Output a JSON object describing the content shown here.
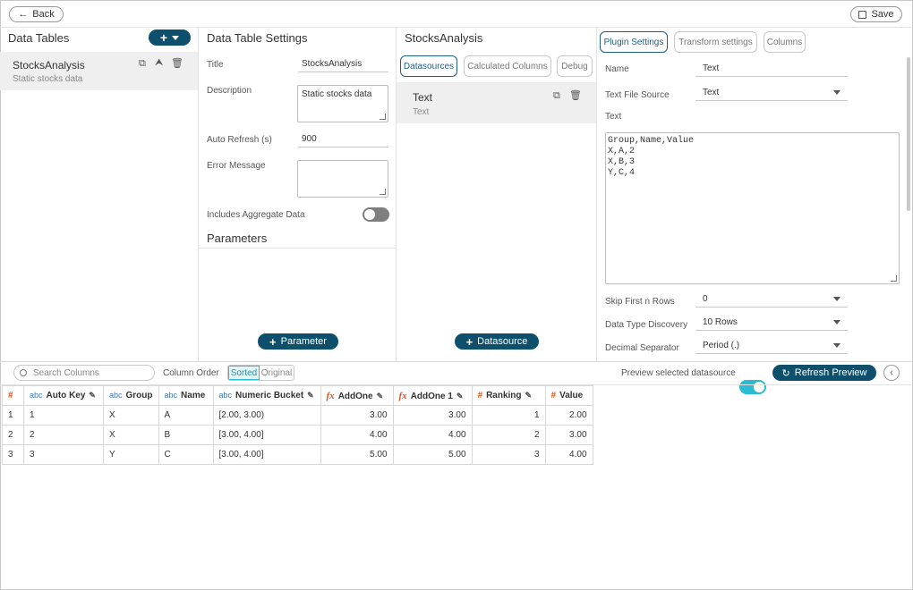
{
  "topbar": {
    "back_label": "Back",
    "save_label": "Save"
  },
  "data_tables": {
    "title": "Data Tables",
    "items": [
      {
        "name": "StocksAnalysis",
        "description": "Static stocks data"
      }
    ]
  },
  "settings": {
    "title": "Data Table Settings",
    "title_label": "Title",
    "title_value": "StocksAnalysis",
    "description_label": "Description",
    "description_value": "Static stocks data",
    "auto_refresh_label": "Auto Refresh (s)",
    "auto_refresh_value": "900",
    "error_message_label": "Error Message",
    "aggregate_label": "Includes Aggregate Data",
    "parameters_title": "Parameters",
    "add_parameter_label": "Parameter"
  },
  "datasource_panel": {
    "title": "StocksAnalysis",
    "tabs": [
      "Datasources",
      "Calculated Columns",
      "Debug"
    ],
    "items": [
      {
        "name": "Text",
        "type": "Text"
      }
    ],
    "add_datasource_label": "Datasource"
  },
  "plugin": {
    "tabs": [
      "Plugin Settings",
      "Transform settings",
      "Columns"
    ],
    "name_label": "Name",
    "name_value": "Text",
    "source_label": "Text File Source",
    "source_value": "Text",
    "text_label": "Text",
    "text_value": "Group,Name,Value\nX,A,2\nX,B,3\nY,C,4",
    "skip_label": "Skip First n Rows",
    "skip_value": "0",
    "discovery_label": "Data Type Discovery",
    "discovery_value": "10 Rows",
    "decimal_label": "Decimal Separator",
    "decimal_value": "Period (.)"
  },
  "preview_bar": {
    "search_placeholder": "Search Columns",
    "column_order_label": "Column Order",
    "sorted_label": "Sorted",
    "original_label": "Original",
    "preview_selected_label": "Preview selected datasource",
    "refresh_label": "Refresh Preview"
  },
  "grid": {
    "columns": [
      {
        "type": "#",
        "name": ""
      },
      {
        "type": "abc",
        "name": "Auto Key"
      },
      {
        "type": "abc",
        "name": "Group"
      },
      {
        "type": "abc",
        "name": "Name"
      },
      {
        "type": "abc",
        "name": "Numeric Bucket"
      },
      {
        "type": "fx",
        "name": "AddOne"
      },
      {
        "type": "fx",
        "name": "AddOne 1"
      },
      {
        "type": "#",
        "name": "Ranking"
      },
      {
        "type": "#",
        "name": "Value"
      }
    ],
    "rows": [
      [
        "1",
        "1",
        "X",
        "A",
        "[2.00, 3.00)",
        "3.00",
        "3.00",
        "1",
        "2.00"
      ],
      [
        "2",
        "2",
        "X",
        "B",
        "[3.00, 4.00]",
        "4.00",
        "4.00",
        "2",
        "3.00"
      ],
      [
        "3",
        "3",
        "Y",
        "C",
        "[3.00, 4.00]",
        "5.00",
        "5.00",
        "3",
        "4.00"
      ]
    ]
  },
  "colors": {
    "accent": "#0e4f6b",
    "toggle_on": "#2bbcd3",
    "type_orange": "#d9541e",
    "type_blue": "#3a78b8"
  }
}
